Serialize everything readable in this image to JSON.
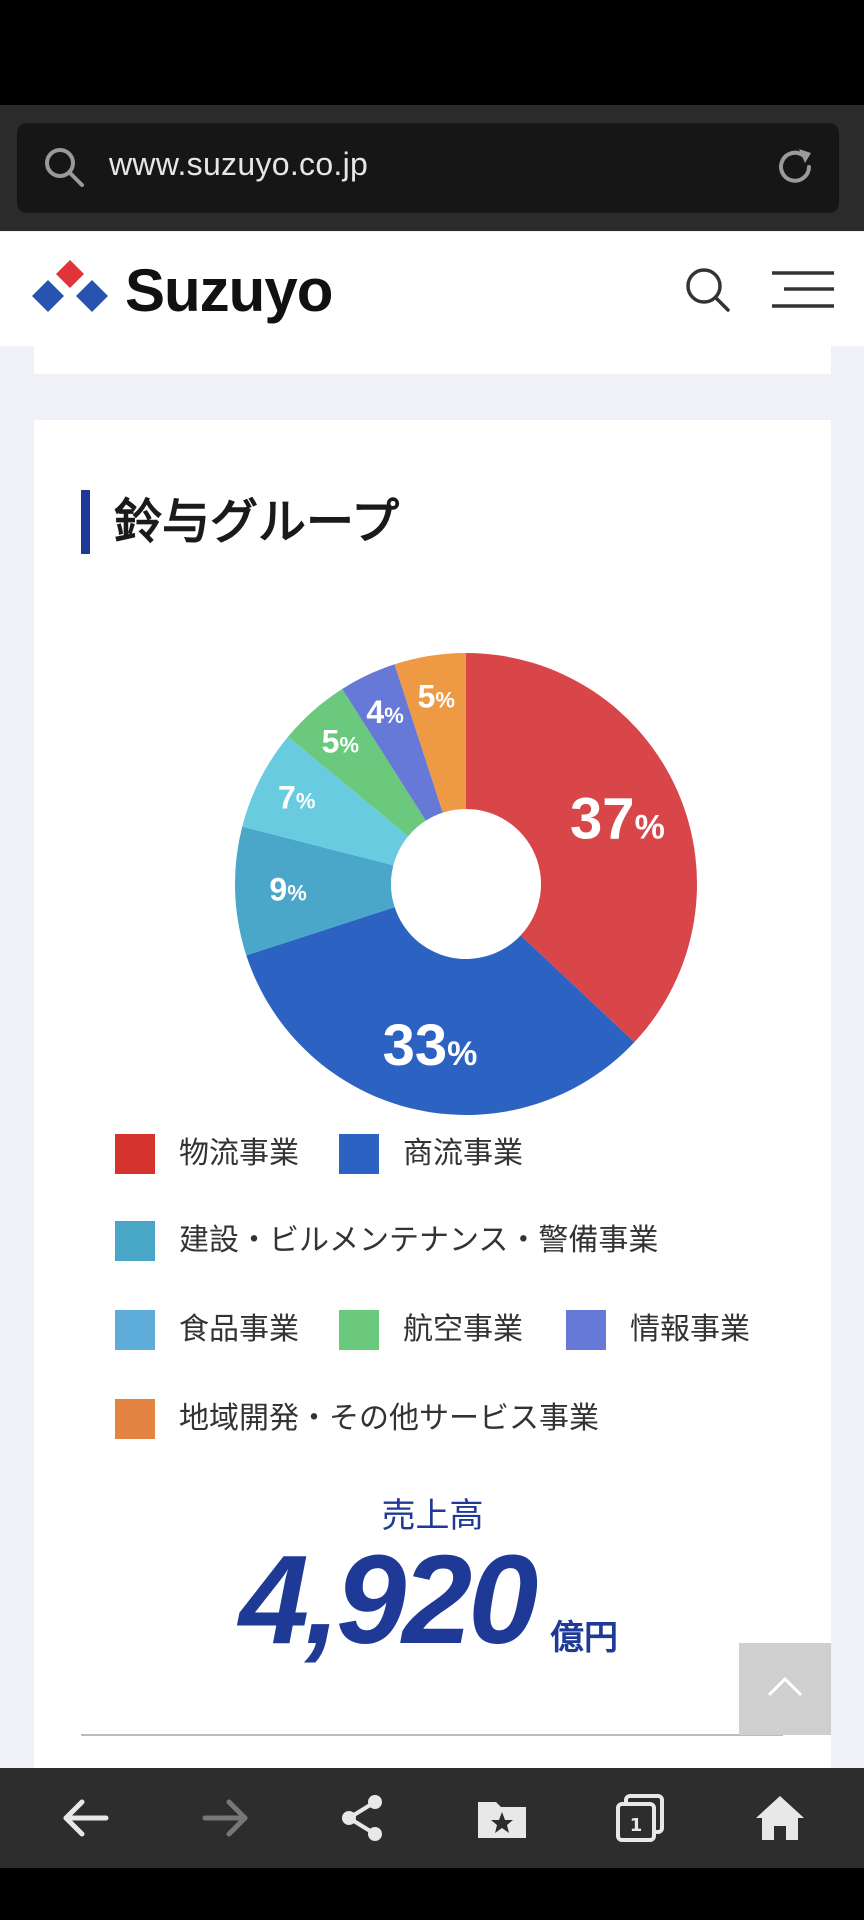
{
  "browser": {
    "url": "www.suzuyo.co.jp"
  },
  "header": {
    "logo_text": "Suzuyo"
  },
  "section": {
    "title": "鈴与グループ"
  },
  "chart_data": {
    "type": "pie",
    "donut": true,
    "categories": [
      "物流事業",
      "商流事業",
      "建設・ビルメンテナンス・警備事業",
      "食品事業",
      "航空事業",
      "情報事業",
      "地域開発・その他サービス事業"
    ],
    "values": [
      37,
      33,
      9,
      7,
      5,
      4,
      5
    ],
    "unit": "%",
    "colors": [
      "#d9464a",
      "#2c63c2",
      "#4aa7c9",
      "#68cbe0",
      "#6bc97d",
      "#6679d6",
      "#ee9a45"
    ],
    "legend_colors": [
      "#d5332e",
      "#2c63c2",
      "#48a6c7",
      "#5eacd9",
      "#6bc97d",
      "#6679d6",
      "#e38443"
    ],
    "legend_placement": "bottom"
  },
  "sales": {
    "label": "売上高",
    "value": "4,920",
    "unit": "億円"
  },
  "colors": {
    "accent": "#1e3a96",
    "logo_red": "#e0333a",
    "logo_blue": "#2a52b0"
  },
  "icons": {
    "url_search": "search-icon",
    "url_reload": "reload-icon",
    "header_search": "search-icon",
    "header_menu": "hamburger-menu-icon",
    "back_to_top": "chevron-up-icon",
    "nav": [
      "back-arrow-icon",
      "forward-arrow-icon",
      "share-icon",
      "bookmark-folder-icon",
      "tabs-icon",
      "home-icon"
    ]
  },
  "nav": {
    "tab_count": "1"
  }
}
